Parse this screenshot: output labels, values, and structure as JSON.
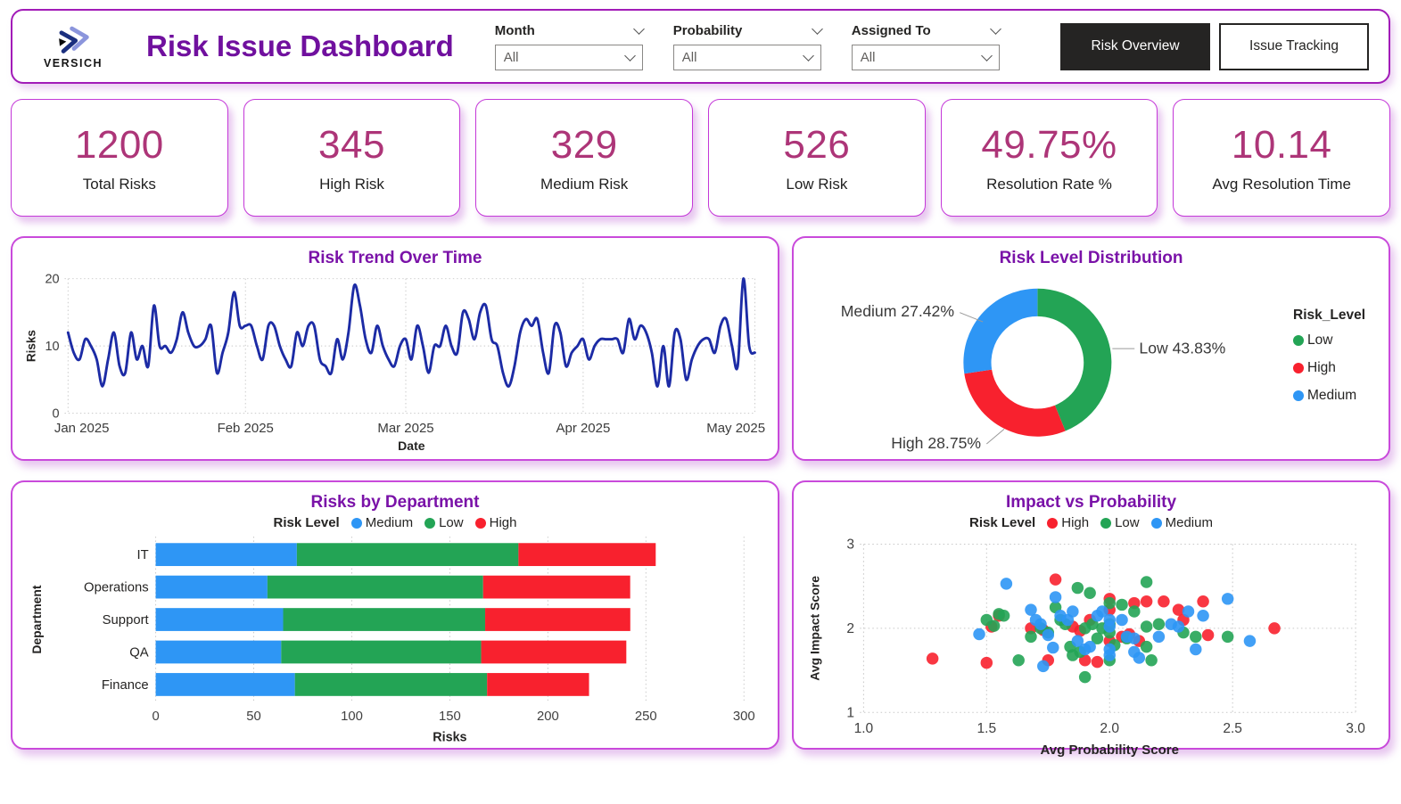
{
  "header": {
    "logo_brand": "VERSICH",
    "title": "Risk Issue Dashboard",
    "filters": [
      {
        "label": "Month",
        "value": "All"
      },
      {
        "label": "Probability",
        "value": "All"
      },
      {
        "label": "Assigned To",
        "value": "All"
      }
    ],
    "nav_buttons": [
      {
        "label": "Risk Overview",
        "active": true
      },
      {
        "label": "Issue Tracking",
        "active": false
      }
    ]
  },
  "kpis": [
    {
      "value": "1200",
      "label": "Total Risks"
    },
    {
      "value": "345",
      "label": "High Risk"
    },
    {
      "value": "329",
      "label": "Medium Risk"
    },
    {
      "value": "526",
      "label": "Low Risk"
    },
    {
      "value": "49.75%",
      "label": "Resolution Rate %"
    },
    {
      "value": "10.14",
      "label": "Avg Resolution Time"
    }
  ],
  "colors": {
    "title_purple": "#70109E",
    "panel_title_purple": "#7A12A8",
    "kpi_value": "#AD3578",
    "card_border": "#C438D8",
    "line_navy": "#1C2BA5",
    "risk_low_green": "#23A455",
    "risk_high_red": "#F8212E",
    "risk_medium_blue": "#2E96F5"
  },
  "chart_data": [
    {
      "type": "line",
      "title": "Risk Trend Over Time",
      "xlabel": "Date",
      "ylabel": "Risks",
      "ylim": [
        0,
        20
      ],
      "y_ticks": [
        0,
        10,
        20
      ],
      "x_ticks": [
        "Jan 2025",
        "Feb 2025",
        "Mar 2025",
        "Apr 2025",
        "May 2025"
      ],
      "x_tick_days": [
        0,
        31,
        59,
        90,
        120
      ],
      "color": "#1C2BA5",
      "values": [
        12,
        9,
        8,
        11,
        10,
        8,
        4,
        8,
        12,
        7,
        6,
        12,
        8,
        10,
        7,
        16,
        10,
        10,
        9,
        11,
        15,
        12,
        10,
        10,
        11,
        13,
        6,
        9,
        12,
        18,
        13,
        13,
        13,
        10,
        8,
        13,
        13,
        10,
        8,
        7,
        12,
        10,
        13,
        13,
        8,
        7,
        6,
        11,
        8,
        12,
        19,
        16,
        11,
        9,
        13,
        10,
        8,
        7,
        10,
        11,
        8,
        13,
        10,
        6,
        10,
        10,
        13,
        10,
        9,
        15,
        14,
        11,
        15,
        16,
        11,
        10,
        6,
        4,
        7,
        12,
        14,
        13,
        14,
        9,
        6,
        13,
        12,
        7,
        9,
        10,
        11,
        8,
        10,
        11,
        11,
        11,
        11,
        9,
        14,
        11,
        13,
        12,
        9,
        4,
        10,
        4,
        12,
        11,
        5,
        8,
        10,
        11,
        11,
        9,
        13,
        14,
        10,
        7,
        20,
        10,
        9
      ]
    },
    {
      "type": "pie",
      "title": "Risk Level Distribution",
      "legend_title": "Risk_Level",
      "slices": [
        {
          "label": "Low",
          "pct": 43.83,
          "color": "#23A455"
        },
        {
          "label": "High",
          "pct": 28.75,
          "color": "#F8212E"
        },
        {
          "label": "Medium",
          "pct": 27.42,
          "color": "#2E96F5"
        }
      ],
      "callouts": [
        "Medium 27.42%",
        "Low 43.83%",
        "High 28.75%"
      ]
    },
    {
      "type": "bar",
      "title": "Risks by Department",
      "legend_title": "Risk Level",
      "xlabel": "Risks",
      "ylabel": "Department",
      "xlim": [
        0,
        300
      ],
      "x_ticks": [
        0,
        50,
        100,
        150,
        200,
        250,
        300
      ],
      "categories": [
        "IT",
        "Operations",
        "Support",
        "QA",
        "Finance"
      ],
      "series": [
        {
          "name": "Medium",
          "color": "#2E96F5",
          "values": [
            72,
            57,
            65,
            64,
            71
          ]
        },
        {
          "name": "Low",
          "color": "#23A455",
          "values": [
            113,
            110,
            103,
            102,
            98
          ]
        },
        {
          "name": "High",
          "color": "#F8212E",
          "values": [
            70,
            75,
            74,
            74,
            52
          ]
        }
      ]
    },
    {
      "type": "scatter",
      "title": "Impact vs Probability",
      "legend_title": "Risk Level",
      "xlabel": "Avg Probability Score",
      "ylabel": "Avg Impact Score",
      "xlim": [
        1.0,
        3.0
      ],
      "ylim": [
        1,
        3
      ],
      "x_ticks": [
        "1.0",
        "1.5",
        "2.0",
        "2.5",
        "3.0"
      ],
      "x_tick_vals": [
        1,
        1.5,
        2,
        2.5,
        3
      ],
      "y_ticks": [
        1,
        2,
        3
      ],
      "series": [
        {
          "name": "High",
          "color": "#F8212E",
          "points": [
            [
              1.28,
              1.64
            ],
            [
              1.5,
              1.59
            ],
            [
              1.52,
              2.02
            ],
            [
              1.55,
              2.15
            ],
            [
              1.68,
              2.0
            ],
            [
              1.73,
              1.98
            ],
            [
              1.75,
              1.62
            ],
            [
              1.78,
              2.58
            ],
            [
              1.85,
              2.02
            ],
            [
              1.88,
              1.97
            ],
            [
              1.9,
              1.62
            ],
            [
              1.92,
              2.1
            ],
            [
              1.95,
              1.6
            ],
            [
              2.0,
              2.35
            ],
            [
              2.0,
              2.22
            ],
            [
              2.0,
              1.85
            ],
            [
              2.05,
              1.9
            ],
            [
              2.08,
              1.93
            ],
            [
              2.1,
              2.3
            ],
            [
              2.12,
              1.85
            ],
            [
              2.15,
              2.32
            ],
            [
              2.22,
              2.32
            ],
            [
              2.28,
              2.22
            ],
            [
              2.3,
              2.1
            ],
            [
              2.38,
              2.32
            ],
            [
              2.4,
              1.92
            ],
            [
              2.67,
              2.0
            ]
          ]
        },
        {
          "name": "Low",
          "color": "#23A455",
          "points": [
            [
              1.5,
              2.1
            ],
            [
              1.53,
              2.03
            ],
            [
              1.55,
              2.17
            ],
            [
              1.57,
              2.15
            ],
            [
              1.63,
              1.62
            ],
            [
              1.68,
              1.9
            ],
            [
              1.72,
              2.0
            ],
            [
              1.75,
              1.95
            ],
            [
              1.78,
              2.25
            ],
            [
              1.8,
              2.1
            ],
            [
              1.82,
              2.05
            ],
            [
              1.84,
              1.78
            ],
            [
              1.85,
              1.68
            ],
            [
              1.87,
              2.48
            ],
            [
              1.88,
              1.72
            ],
            [
              1.9,
              1.42
            ],
            [
              1.9,
              2.0
            ],
            [
              1.92,
              2.42
            ],
            [
              1.93,
              2.05
            ],
            [
              1.95,
              1.88
            ],
            [
              1.97,
              2.0
            ],
            [
              2.0,
              2.3
            ],
            [
              2.0,
              2.05
            ],
            [
              2.0,
              1.95
            ],
            [
              2.0,
              1.62
            ],
            [
              2.02,
              1.8
            ],
            [
              2.05,
              2.28
            ],
            [
              2.07,
              1.88
            ],
            [
              2.1,
              2.2
            ],
            [
              2.15,
              2.55
            ],
            [
              2.15,
              2.02
            ],
            [
              2.15,
              1.78
            ],
            [
              2.17,
              1.62
            ],
            [
              2.2,
              2.05
            ],
            [
              2.3,
              1.95
            ],
            [
              2.35,
              1.9
            ],
            [
              2.48,
              1.9
            ]
          ]
        },
        {
          "name": "Medium",
          "color": "#2E96F5",
          "points": [
            [
              1.47,
              1.93
            ],
            [
              1.58,
              2.53
            ],
            [
              1.68,
              2.22
            ],
            [
              1.7,
              2.1
            ],
            [
              1.72,
              2.05
            ],
            [
              1.73,
              1.55
            ],
            [
              1.75,
              1.92
            ],
            [
              1.77,
              1.77
            ],
            [
              1.78,
              2.37
            ],
            [
              1.8,
              2.15
            ],
            [
              1.83,
              2.1
            ],
            [
              1.85,
              2.2
            ],
            [
              1.87,
              1.85
            ],
            [
              1.9,
              1.75
            ],
            [
              1.92,
              1.78
            ],
            [
              1.95,
              2.15
            ],
            [
              1.97,
              2.2
            ],
            [
              2.0,
              2.1
            ],
            [
              2.0,
              2.02
            ],
            [
              2.0,
              1.75
            ],
            [
              2.0,
              1.68
            ],
            [
              2.05,
              2.1
            ],
            [
              2.07,
              1.9
            ],
            [
              2.1,
              1.88
            ],
            [
              2.1,
              1.72
            ],
            [
              2.12,
              1.65
            ],
            [
              2.2,
              1.9
            ],
            [
              2.25,
              2.05
            ],
            [
              2.28,
              2.02
            ],
            [
              2.32,
              2.2
            ],
            [
              2.35,
              1.75
            ],
            [
              2.38,
              2.15
            ],
            [
              2.48,
              2.35
            ],
            [
              2.57,
              1.85
            ]
          ]
        }
      ]
    }
  ]
}
